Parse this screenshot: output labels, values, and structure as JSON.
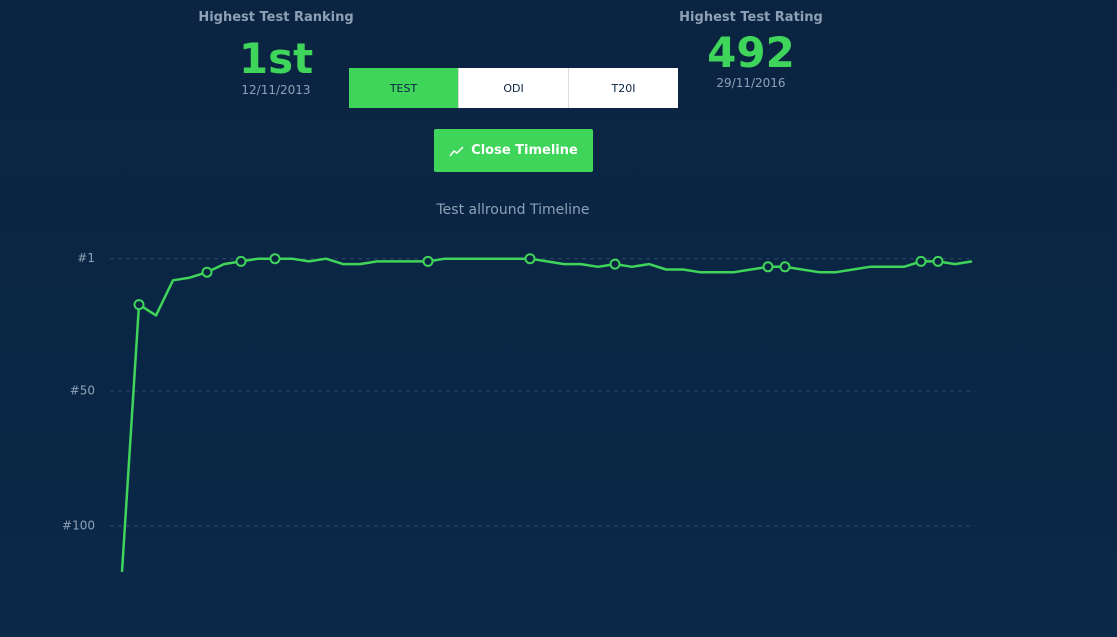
{
  "ranking": {
    "label": "Highest Test Ranking",
    "value": "1st",
    "date": "12/11/2013"
  },
  "rating": {
    "label": "Highest Test Rating",
    "value": 492,
    "date": "29/11/2016"
  },
  "tabs": [
    "TEST",
    "ODI",
    "T20I"
  ],
  "button": "Close Timeline",
  "chart_data": {
    "type": "line",
    "title": "Test allround Timeline",
    "values": [
      117,
      18,
      22,
      9,
      8,
      6,
      3,
      2,
      1,
      1,
      1,
      2,
      1,
      3,
      3,
      2,
      2,
      2,
      2,
      1,
      1,
      1,
      1,
      1,
      1,
      2,
      3,
      3,
      4,
      3,
      4,
      3,
      5,
      5,
      6,
      6,
      6,
      5,
      4,
      4,
      5,
      6,
      6,
      5,
      4,
      4,
      4,
      2,
      2,
      3,
      2
    ],
    "markers": [
      false,
      true,
      false,
      false,
      false,
      true,
      false,
      true,
      false,
      true,
      false,
      false,
      false,
      false,
      false,
      false,
      false,
      false,
      true,
      false,
      false,
      false,
      false,
      false,
      true,
      false,
      false,
      false,
      false,
      true,
      false,
      false,
      false,
      false,
      false,
      false,
      false,
      false,
      true,
      true,
      false,
      false,
      false,
      false,
      false,
      false,
      false,
      true,
      true,
      false,
      false
    ],
    "color": "#3fd45a",
    "ylim": [
      120,
      0
    ],
    "yticks": [
      {
        "value": 1,
        "label": "#1"
      },
      {
        "value": 50,
        "label": "#50"
      },
      {
        "value": 100,
        "label": "#100"
      }
    ],
    "grid": true
  }
}
